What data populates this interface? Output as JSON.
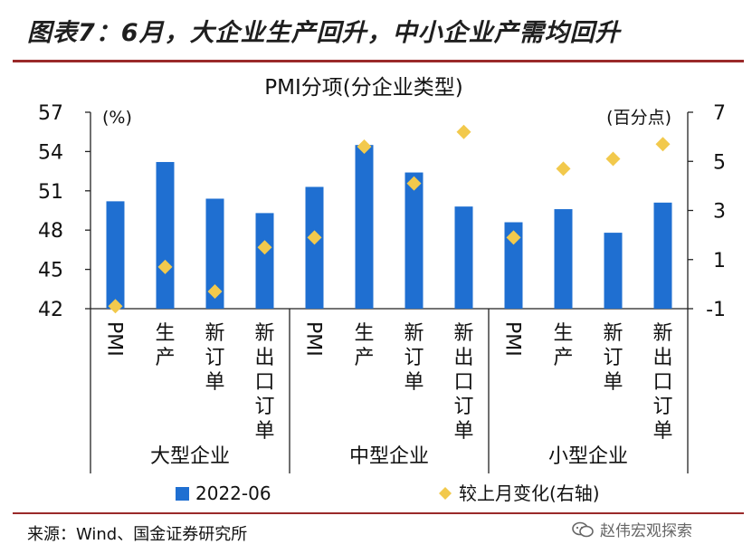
{
  "header": {
    "title": "图表7：6月，大企业生产回升，中小企业产需均回升"
  },
  "footer": {
    "source": "来源：Wind、国金证券研究所",
    "watermark": "赵伟宏观探索",
    "watermark_icon": "wechat-icon"
  },
  "colors": {
    "bar": "#1f6fd1",
    "marker": "#f2c94c",
    "rule": "#9a2a2a"
  },
  "chart_data": {
    "type": "bar",
    "title": "PMI分项(分企业类型)",
    "left_unit": "(%)",
    "right_unit": "(百分点)",
    "groups": [
      "大型企业",
      "中型企业",
      "小型企业"
    ],
    "categories": [
      "PMI",
      "生产",
      "新订单",
      "新出口订单",
      "PMI",
      "生产",
      "新订单",
      "新出口订单",
      "PMI",
      "生产",
      "新订单",
      "新出口订单"
    ],
    "category_group": [
      0,
      0,
      0,
      0,
      1,
      1,
      1,
      1,
      2,
      2,
      2,
      2
    ],
    "y_left": {
      "min": 42,
      "max": 57,
      "ticks": [
        42,
        45,
        48,
        51,
        54,
        57
      ]
    },
    "y_right": {
      "min": -1,
      "max": 7,
      "ticks": [
        -1,
        1,
        3,
        5,
        7
      ]
    },
    "series": [
      {
        "name": "2022-06",
        "type": "bar",
        "axis": "left",
        "values": [
          50.2,
          53.2,
          50.4,
          49.3,
          51.3,
          54.5,
          52.4,
          49.8,
          48.6,
          49.6,
          47.8,
          50.1
        ]
      },
      {
        "name": "较上月变化(右轴)",
        "type": "scatter",
        "axis": "right",
        "values": [
          -0.9,
          0.7,
          -0.3,
          1.5,
          1.9,
          5.6,
          4.1,
          6.2,
          1.9,
          4.7,
          5.1,
          5.7
        ]
      }
    ],
    "legend_position": "bottom",
    "grid": false
  }
}
